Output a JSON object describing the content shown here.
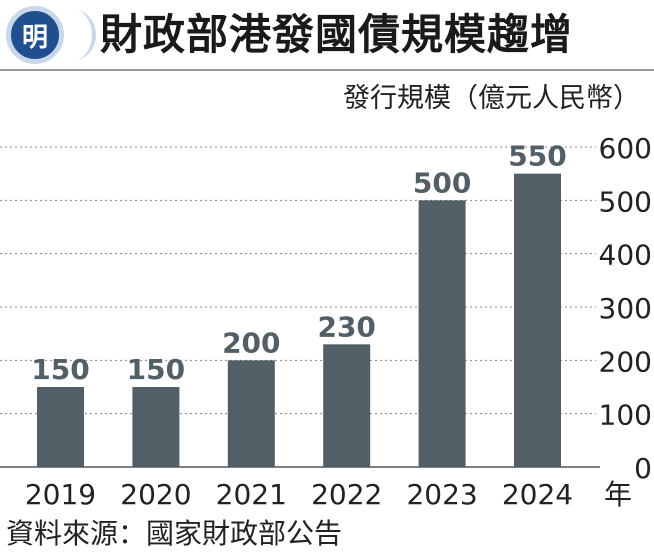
{
  "header": {
    "logo_text": "明",
    "title": "財政部港發國債規模趨增"
  },
  "unit_label": "發行規模（億元人民幣）",
  "x_unit": "年",
  "source": "資料來源：國家財政部公告",
  "colors": {
    "bar": "#535f66",
    "logo": "#1f4f8f",
    "grid": "#888888"
  },
  "chart_data": {
    "type": "bar",
    "categories": [
      "2019",
      "2020",
      "2021",
      "2022",
      "2023",
      "2024"
    ],
    "values": [
      150,
      150,
      200,
      230,
      500,
      550
    ],
    "data_labels": [
      "150",
      "150",
      "200",
      "230",
      "500",
      "550"
    ],
    "ylim": [
      0,
      600
    ],
    "yticks": [
      0,
      100,
      200,
      300,
      400,
      500,
      600
    ],
    "y_axis_side": "right",
    "grid": true,
    "title": "財政部港發國債規模趨增",
    "ylabel": "發行規模（億元人民幣）",
    "xlabel": "年"
  }
}
